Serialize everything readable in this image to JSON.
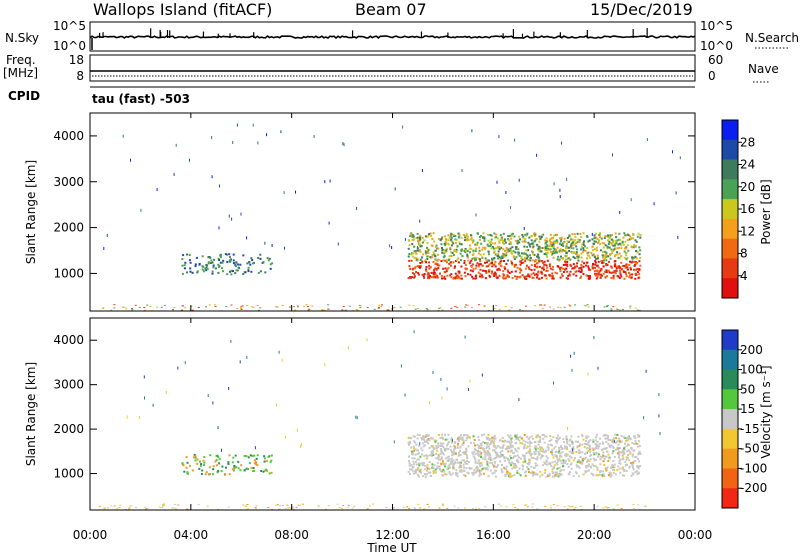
{
  "header": {
    "site": "Wallops Island (fitACF)",
    "beam": "Beam 07",
    "date": "15/Dec/2019"
  },
  "top_panels": {
    "nsky": {
      "label": "N.Sky",
      "tick_top": "10^5",
      "tick_bottom": "10^0",
      "right_label": "N.Search",
      "right_tick_top": "10^5",
      "right_tick_bottom": "10^0"
    },
    "freq": {
      "label_line1": "Freq.",
      "label_line2": "[MHz]",
      "tick_top": "18",
      "tick_bottom": "8",
      "right_label": "Nave",
      "right_tick_top": "60",
      "right_tick_bottom": "0"
    },
    "cpid": {
      "label": "CPID",
      "value_text": "tau (fast) -503"
    }
  },
  "time_axis": {
    "label": "Time UT",
    "ticks": [
      "00:00",
      "04:00",
      "08:00",
      "12:00",
      "16:00",
      "20:00",
      "00:00"
    ]
  },
  "colorbars": {
    "power": {
      "label": "Power [dB]",
      "ticks": [
        "28",
        "24",
        "20",
        "16",
        "12",
        "8",
        "4"
      ],
      "colors": [
        "#0a1ef0",
        "#1d4aa8",
        "#3d7a5e",
        "#4aa257",
        "#c8c81e",
        "#f5a01c",
        "#f06a12",
        "#e83a12",
        "#e01010"
      ]
    },
    "velocity": {
      "label": "Velocity [m s⁻¹]",
      "ticks": [
        "200",
        "100",
        "50",
        "15",
        "-15",
        "-50",
        "-100",
        "-200"
      ],
      "colors": [
        "#1e3cc8",
        "#1a7a9a",
        "#2a8a5a",
        "#54c83c",
        "#c8c8c8",
        "#f0c832",
        "#f09a1e",
        "#f06414",
        "#f02814"
      ]
    }
  },
  "chart_data": [
    {
      "type": "heatmap",
      "name": "Power",
      "xlabel": "Time UT",
      "ylabel": "Slant Range [km]",
      "xlim_hours": [
        0,
        24
      ],
      "ylim": [
        180,
        4500
      ],
      "y_ticks": [
        1000,
        2000,
        3000,
        4000
      ],
      "colorbar_label": "Power [dB]",
      "colorbar_range": [
        0,
        30
      ]
    },
    {
      "type": "heatmap",
      "name": "Velocity",
      "xlabel": "Time UT",
      "ylabel": "Slant Range [km]",
      "xlim_hours": [
        0,
        24
      ],
      "ylim": [
        180,
        4500
      ],
      "y_ticks": [
        1000,
        2000,
        3000,
        4000
      ],
      "colorbar_label": "Velocity [m s⁻¹]",
      "colorbar_range": [
        -250,
        250
      ]
    }
  ]
}
